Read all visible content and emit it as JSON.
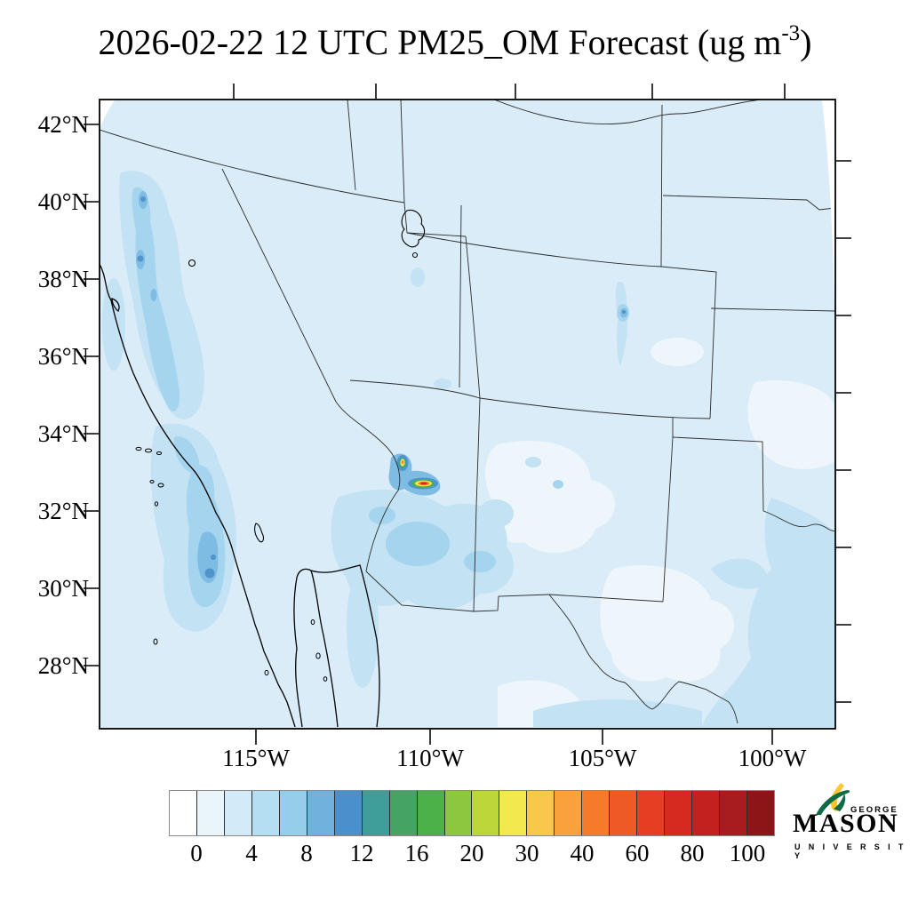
{
  "title": {
    "main": "2026-02-22 12 UTC PM25_OM Forecast (ug m",
    "exponent": "-3",
    "suffix": ")"
  },
  "map": {
    "y_axis": {
      "labels": [
        "42°N",
        "40°N",
        "38°N",
        "36°N",
        "34°N",
        "32°N",
        "30°N",
        "28°N"
      ]
    },
    "x_axis": {
      "labels": [
        "115°W",
        "110°W",
        "105°W",
        "100°W"
      ]
    }
  },
  "colorbar": {
    "labels": [
      "0",
      "4",
      "8",
      "12",
      "16",
      "20",
      "30",
      "40",
      "60",
      "80",
      "100"
    ],
    "colors": [
      "#ffffff",
      "#e9f4fb",
      "#d3eaf8",
      "#b5def3",
      "#95cdeb",
      "#70b1de",
      "#4a90cc",
      "#3f9e99",
      "#45a364",
      "#4bb148",
      "#8dc63f",
      "#bdd73b",
      "#f2e94e",
      "#f9c74a",
      "#f9a13c",
      "#f47b2a",
      "#ee5a25",
      "#e63e23",
      "#d62a21",
      "#c32020",
      "#a81c1e",
      "#8c1517"
    ]
  },
  "logo": {
    "george": "GEORGE",
    "mason": "MASON",
    "university": "U N I V E R S I T Y",
    "green": "#0e6b45",
    "gold": "#fdc82f"
  },
  "chart_data": {
    "type": "heatmap",
    "title": "2026-02-22 12 UTC PM25_OM Forecast (ug m-3)",
    "datetime": "2026-02-22 12 UTC",
    "variable": "PM25_OM",
    "units": "ug m-3",
    "region": "Southwestern United States and northern Mexico (Lambert conformal style projection)",
    "lat_tick_labels": [
      "42°N",
      "40°N",
      "38°N",
      "36°N",
      "34°N",
      "32°N",
      "30°N",
      "28°N"
    ],
    "lon_tick_labels": [
      "115°W",
      "110°W",
      "105°W",
      "100°W"
    ],
    "grid": false,
    "legend_position": "bottom colorbar",
    "colorbar": {
      "tick_labels": [
        "0",
        "4",
        "8",
        "12",
        "16",
        "20",
        "30",
        "40",
        "60",
        "80",
        "100"
      ],
      "bin_edges": [
        0,
        2,
        4,
        6,
        8,
        10,
        12,
        14,
        16,
        18,
        20,
        25,
        30,
        35,
        40,
        50,
        60,
        70,
        80,
        90,
        100
      ],
      "colors": [
        "#ffffff",
        "#e9f4fb",
        "#d3eaf8",
        "#b5def3",
        "#95cdeb",
        "#70b1de",
        "#4a90cc",
        "#3f9e99",
        "#45a364",
        "#4bb148",
        "#8dc63f",
        "#bdd73b",
        "#f2e94e",
        "#f9c74a",
        "#f9a13c",
        "#f47b2a",
        "#ee5a25",
        "#e63e23",
        "#d62a21",
        "#c32020",
        "#a81c1e",
        "#8c1517"
      ],
      "under_color": "#ffffff",
      "over_color": "#8c1517"
    },
    "field_summary": [
      {
        "region": "most of domain (background)",
        "value_ug_m3": "0-2"
      },
      {
        "region": "Sierra Nevada band, eastern California",
        "value_ug_m3": "2-8 with local cores 8-12"
      },
      {
        "region": "Southern California / northern Baja coastal offshore plume",
        "value_ug_m3": "2-10 with core ~10-12"
      },
      {
        "region": "central Arizona plume 1 (~33.5N, 111W)",
        "value_ug_m3": "peak 25-40 (yellow/orange core)"
      },
      {
        "region": "central Arizona plume 2 (~33N, 110.5W), elongated E-W",
        "value_ug_m3": "peak 60-80 (red core)"
      },
      {
        "region": "south-central Colorado spot (~37.4N, 105.5W)",
        "value_ug_m3": "4-10"
      },
      {
        "region": "southeastern Arizona / southwestern New Mexico",
        "value_ug_m3": "2-6"
      },
      {
        "region": "eastern Texas edge and south Texas",
        "value_ug_m3": "2-4"
      },
      {
        "region": "white patches in New Mexico / west Texas / Kansas",
        "value_ug_m3": "< 0.5"
      }
    ]
  }
}
